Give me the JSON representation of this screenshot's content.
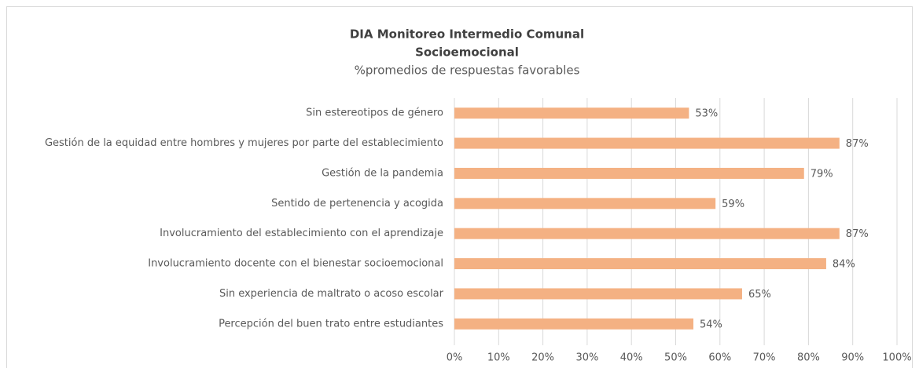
{
  "chart_data": {
    "type": "bar",
    "orientation": "horizontal",
    "title": [
      "DIA Monitoreo Intermedio Comunal",
      "Socioemocional"
    ],
    "subtitle": "%promedios de respuestas favorables",
    "categories": [
      "Sin estereotipos de género",
      "Gestión de la equidad entre hombres y mujeres por parte del establecimiento",
      "Gestión de la pandemia",
      "Sentido de pertenencia y acogida",
      "Involucramiento del establecimiento con el aprendizaje",
      "Involucramiento docente con el bienestar socioemocional",
      "Sin experiencia de maltrato o acoso escolar",
      "Percepción del buen trato entre estudiantes"
    ],
    "values": [
      53,
      87,
      79,
      59,
      87,
      84,
      65,
      54
    ],
    "value_labels": [
      "53%",
      "87%",
      "79%",
      "59%",
      "87%",
      "84%",
      "65%",
      "54%"
    ],
    "color": "#f4b183",
    "xlim": [
      0,
      100
    ],
    "xticks": [
      {
        "value": 0,
        "label": "0%"
      },
      {
        "value": 10,
        "label": "10%"
      },
      {
        "value": 20,
        "label": "20%"
      },
      {
        "value": 30,
        "label": "30%"
      },
      {
        "value": 40,
        "label": "40%"
      },
      {
        "value": 50,
        "label": "50%"
      },
      {
        "value": 60,
        "label": "60%"
      },
      {
        "value": 70,
        "label": "70%"
      },
      {
        "value": 80,
        "label": "80%"
      },
      {
        "value": 90,
        "label": "90%"
      },
      {
        "value": 100,
        "label": "100%"
      }
    ],
    "grid": true
  }
}
